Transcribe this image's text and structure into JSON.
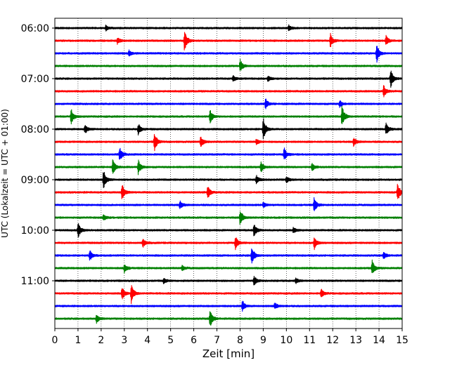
{
  "chart_data": {
    "type": "line",
    "title": "",
    "xlabel": "Zeit  [min]",
    "ylabel": "UTC (Lokalzeit = UTC + 01:00)",
    "xlim": [
      0,
      15
    ],
    "x_ticks": [
      "0",
      "1",
      "2",
      "3",
      "4",
      "5",
      "6",
      "7",
      "8",
      "9",
      "10",
      "11",
      "12",
      "13",
      "14",
      "15"
    ],
    "y_tick_labels": [
      "06:00",
      "07:00",
      "08:00",
      "09:00",
      "10:00",
      "11:00"
    ],
    "grid": "vertical dotted",
    "trace_interval_min": 15,
    "series_colors": [
      "#000000",
      "#ff0000",
      "#0000ff",
      "#008000"
    ],
    "traces": [
      {
        "start": "06:00",
        "color": "#000000",
        "events": [
          [
            2.2,
            0.5
          ],
          [
            10.1,
            0.5
          ]
        ]
      },
      {
        "start": "06:15",
        "color": "#ff0000",
        "events": [
          [
            2.7,
            0.6
          ],
          [
            5.6,
            2.0
          ],
          [
            11.9,
            1.2
          ],
          [
            14.3,
            0.9
          ]
        ]
      },
      {
        "start": "06:30",
        "color": "#0000ff",
        "events": [
          [
            3.2,
            0.5
          ],
          [
            13.9,
            1.7
          ]
        ]
      },
      {
        "start": "06:45",
        "color": "#008000",
        "events": [
          [
            8.0,
            1.2
          ]
        ]
      },
      {
        "start": "07:00",
        "color": "#000000",
        "events": [
          [
            7.7,
            0.5
          ],
          [
            9.2,
            0.5
          ],
          [
            14.5,
            1.8
          ]
        ]
      },
      {
        "start": "07:15",
        "color": "#ff0000",
        "events": [
          [
            14.2,
            1.1
          ]
        ]
      },
      {
        "start": "07:30",
        "color": "#0000ff",
        "events": [
          [
            9.1,
            1.0
          ],
          [
            12.3,
            0.6
          ]
        ]
      },
      {
        "start": "07:45",
        "color": "#008000",
        "events": [
          [
            0.7,
            1.4
          ],
          [
            6.7,
            1.4
          ],
          [
            12.4,
            2.0
          ]
        ]
      },
      {
        "start": "08:00",
        "color": "#000000",
        "events": [
          [
            1.3,
            0.8
          ],
          [
            3.6,
            1.0
          ],
          [
            9.0,
            2.0
          ],
          [
            14.3,
            1.2
          ]
        ]
      },
      {
        "start": "08:15",
        "color": "#ff0000",
        "events": [
          [
            4.3,
            1.8
          ],
          [
            6.3,
            1.0
          ],
          [
            8.7,
            0.5
          ],
          [
            12.9,
            0.8
          ]
        ]
      },
      {
        "start": "08:30",
        "color": "#0000ff",
        "events": [
          [
            2.8,
            1.4
          ],
          [
            9.9,
            1.2
          ]
        ]
      },
      {
        "start": "08:45",
        "color": "#008000",
        "events": [
          [
            2.5,
            1.4
          ],
          [
            3.6,
            1.4
          ],
          [
            8.9,
            1.0
          ],
          [
            11.1,
            0.8
          ]
        ]
      },
      {
        "start": "09:00",
        "color": "#000000",
        "events": [
          [
            2.1,
            2.0
          ],
          [
            8.7,
            0.8
          ],
          [
            10.0,
            0.6
          ]
        ]
      },
      {
        "start": "09:15",
        "color": "#ff0000",
        "events": [
          [
            2.9,
            1.6
          ],
          [
            6.6,
            1.2
          ],
          [
            14.8,
            1.8
          ]
        ]
      },
      {
        "start": "09:30",
        "color": "#0000ff",
        "events": [
          [
            5.4,
            0.8
          ],
          [
            9.0,
            0.5
          ],
          [
            11.2,
            1.4
          ]
        ]
      },
      {
        "start": "09:45",
        "color": "#008000",
        "events": [
          [
            2.1,
            0.6
          ],
          [
            8.0,
            1.6
          ]
        ]
      },
      {
        "start": "10:00",
        "color": "#000000",
        "events": [
          [
            1.0,
            1.4
          ],
          [
            8.6,
            1.2
          ],
          [
            10.3,
            0.5
          ]
        ]
      },
      {
        "start": "10:15",
        "color": "#ff0000",
        "events": [
          [
            3.8,
            0.8
          ],
          [
            7.8,
            1.2
          ],
          [
            11.2,
            1.2
          ]
        ]
      },
      {
        "start": "10:30",
        "color": "#0000ff",
        "events": [
          [
            1.5,
            1.0
          ],
          [
            8.5,
            1.8
          ],
          [
            14.2,
            0.6
          ]
        ]
      },
      {
        "start": "10:45",
        "color": "#008000",
        "events": [
          [
            3.0,
            0.8
          ],
          [
            5.5,
            0.5
          ],
          [
            13.7,
            1.4
          ]
        ]
      },
      {
        "start": "11:00",
        "color": "#000000",
        "events": [
          [
            4.7,
            0.5
          ],
          [
            8.6,
            0.8
          ],
          [
            10.4,
            0.5
          ]
        ]
      },
      {
        "start": "11:15",
        "color": "#ff0000",
        "events": [
          [
            2.9,
            1.2
          ],
          [
            3.3,
            1.8
          ],
          [
            11.5,
            0.8
          ]
        ]
      },
      {
        "start": "11:30",
        "color": "#0000ff",
        "events": [
          [
            8.1,
            1.0
          ],
          [
            9.5,
            0.6
          ]
        ]
      },
      {
        "start": "11:45",
        "color": "#008000",
        "events": [
          [
            1.8,
            0.8
          ],
          [
            6.7,
            1.6
          ]
        ]
      }
    ]
  }
}
